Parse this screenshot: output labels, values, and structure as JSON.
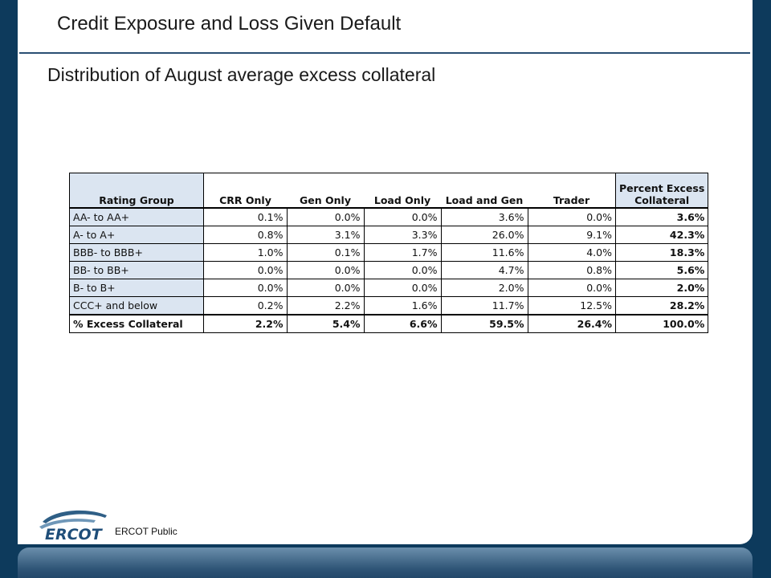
{
  "slide": {
    "title": "Credit Exposure and Loss Given Default",
    "subtitle": "Distribution of August average excess collateral"
  },
  "table": {
    "headers": [
      "Rating Group",
      "CRR Only",
      "Gen Only",
      "Load Only",
      "Load and Gen",
      "Trader",
      "Percent Excess Collateral"
    ],
    "header_last_line1": "Percent Excess",
    "header_last_line2": "Collateral",
    "rows": [
      {
        "group": "AA- to AA+",
        "values": [
          "0.1%",
          "0.0%",
          "0.0%",
          "3.6%",
          "0.0%"
        ],
        "total": "3.6%"
      },
      {
        "group": "A- to A+",
        "values": [
          "0.8%",
          "3.1%",
          "3.3%",
          "26.0%",
          "9.1%"
        ],
        "total": "42.3%"
      },
      {
        "group": "BBB- to BBB+",
        "values": [
          "1.0%",
          "0.1%",
          "1.7%",
          "11.6%",
          "4.0%"
        ],
        "total": "18.3%"
      },
      {
        "group": "BB- to BB+",
        "values": [
          "0.0%",
          "0.0%",
          "0.0%",
          "4.7%",
          "0.8%"
        ],
        "total": "5.6%"
      },
      {
        "group": "B- to B+",
        "values": [
          "0.0%",
          "0.0%",
          "0.0%",
          "2.0%",
          "0.0%"
        ],
        "total": "2.0%"
      },
      {
        "group": "CCC+ and below",
        "values": [
          "0.2%",
          "2.2%",
          "1.6%",
          "11.7%",
          "12.5%"
        ],
        "total": "28.2%"
      }
    ],
    "footer": {
      "group": "% Excess Collateral",
      "values": [
        "2.2%",
        "5.4%",
        "6.6%",
        "59.5%",
        "26.4%"
      ],
      "total": "100.0%"
    }
  },
  "footer": {
    "logo_text": "ERCOT",
    "label": "ERCOT Public"
  },
  "colors": {
    "frame": "#0d3a5c",
    "rule": "#2a4f73",
    "header_fill": "#dbe5f1"
  }
}
